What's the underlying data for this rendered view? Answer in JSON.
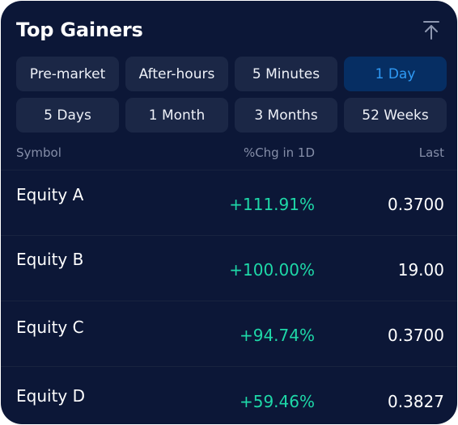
{
  "panel": {
    "title": "Top Gainers",
    "collapse_icon": "collapse-to-top-icon"
  },
  "periods": [
    {
      "label": "Pre-market",
      "active": false
    },
    {
      "label": "After-hours",
      "active": false
    },
    {
      "label": "5 Minutes",
      "active": false
    },
    {
      "label": "1 Day",
      "active": true
    },
    {
      "label": "5 Days",
      "active": false
    },
    {
      "label": "1 Month",
      "active": false
    },
    {
      "label": "3 Months",
      "active": false
    },
    {
      "label": "52 Weeks",
      "active": false
    }
  ],
  "table": {
    "headers": {
      "symbol": "Symbol",
      "change": "%Chg in 1D",
      "last": "Last"
    },
    "rows": [
      {
        "symbol": "Equity A",
        "change": "+111.91%",
        "last": "0.3700"
      },
      {
        "symbol": "Equity B",
        "change": "+100.00%",
        "last": "19.00"
      },
      {
        "symbol": "Equity C",
        "change": "+94.74%",
        "last": "0.3700"
      },
      {
        "symbol": "Equity D",
        "change": "+59.46%",
        "last": "0.3827"
      }
    ]
  },
  "colors": {
    "background": "#0c1737",
    "button": "#1b2746",
    "active_button": "#062e63",
    "active_text": "#2f9af5",
    "gain": "#1ed8a8",
    "muted": "#858ea8"
  }
}
